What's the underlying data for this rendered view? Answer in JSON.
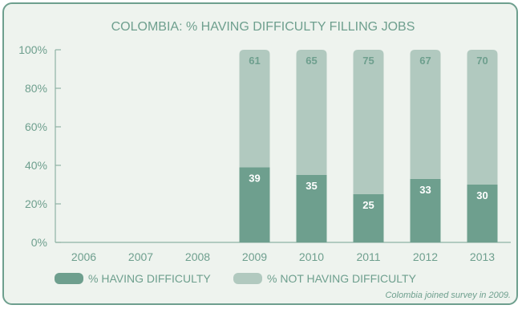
{
  "chart_data": {
    "type": "bar",
    "stacked": true,
    "title": "COLOMBIA: % HAVING DIFFICULTY FILLING JOBS",
    "categories": [
      "2006",
      "2007",
      "2008",
      "2009",
      "2010",
      "2011",
      "2012",
      "2013"
    ],
    "series": [
      {
        "name": "% HAVING DIFFICULTY",
        "values": [
          null,
          null,
          null,
          39,
          35,
          25,
          33,
          30
        ],
        "labels": [
          "",
          "",
          "",
          "39",
          "35",
          "25",
          "33",
          "30"
        ],
        "color": "#6e9f8e"
      },
      {
        "name": "% NOT HAVING DIFFICULTY",
        "values": [
          null,
          null,
          null,
          61,
          65,
          75,
          67,
          70
        ],
        "labels": [
          "",
          "",
          "",
          "61",
          "65",
          "75",
          "67",
          "70"
        ],
        "color": "#b1c9bf"
      }
    ],
    "yticks": [
      "0%",
      "20%",
      "40%",
      "60%",
      "80%",
      "100%"
    ],
    "ylim": [
      0,
      100
    ],
    "grid": false,
    "legend_position": "bottom",
    "note": "Colombia joined survey in 2009.",
    "colors": {
      "text": "#6e9f8e",
      "axis": "#8fb3a5",
      "background": "#eef3ee",
      "border": "#6e9f8e",
      "label_on_dark": "#ffffff"
    }
  }
}
